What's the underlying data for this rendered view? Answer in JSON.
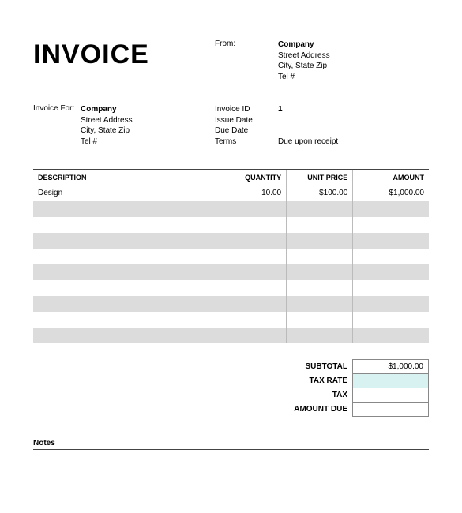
{
  "title": "INVOICE",
  "from": {
    "label": "From:",
    "company": "Company",
    "street": "Street Address",
    "citystate": "City, State Zip",
    "tel": "Tel #"
  },
  "billto": {
    "label": "Invoice For:",
    "company": "Company",
    "street": "Street Address",
    "citystate": "City, State Zip",
    "tel": "Tel #"
  },
  "meta": {
    "invoice_id_label": "Invoice ID",
    "invoice_id": "1",
    "issue_date_label": "Issue Date",
    "issue_date": "",
    "due_date_label": "Due Date",
    "due_date": "",
    "terms_label": "Terms",
    "terms": "Due upon receipt"
  },
  "table": {
    "headers": {
      "description": "DESCRIPTION",
      "quantity": "QUANTITY",
      "unit_price": "UNIT PRICE",
      "amount": "AMOUNT"
    },
    "rows": [
      {
        "description": "Design",
        "quantity": "10.00",
        "unit_price": "$100.00",
        "amount": "$1,000.00"
      },
      {
        "description": "",
        "quantity": "",
        "unit_price": "",
        "amount": ""
      },
      {
        "description": "",
        "quantity": "",
        "unit_price": "",
        "amount": ""
      },
      {
        "description": "",
        "quantity": "",
        "unit_price": "",
        "amount": ""
      },
      {
        "description": "",
        "quantity": "",
        "unit_price": "",
        "amount": ""
      },
      {
        "description": "",
        "quantity": "",
        "unit_price": "",
        "amount": ""
      },
      {
        "description": "",
        "quantity": "",
        "unit_price": "",
        "amount": ""
      },
      {
        "description": "",
        "quantity": "",
        "unit_price": "",
        "amount": ""
      },
      {
        "description": "",
        "quantity": "",
        "unit_price": "",
        "amount": ""
      },
      {
        "description": "",
        "quantity": "",
        "unit_price": "",
        "amount": ""
      }
    ]
  },
  "totals": {
    "subtotal_label": "SUBTOTAL",
    "subtotal": "$1,000.00",
    "taxrate_label": "TAX RATE",
    "taxrate": "",
    "tax_label": "TAX",
    "tax": "",
    "amountdue_label": "AMOUNT DUE",
    "amountdue": ""
  },
  "notes_label": "Notes",
  "style": {
    "stripe_color": "#dcdcdc",
    "border_color": "#444444",
    "cell_border": "#bbbbbb",
    "editable_bg": "#d8f2f2"
  }
}
